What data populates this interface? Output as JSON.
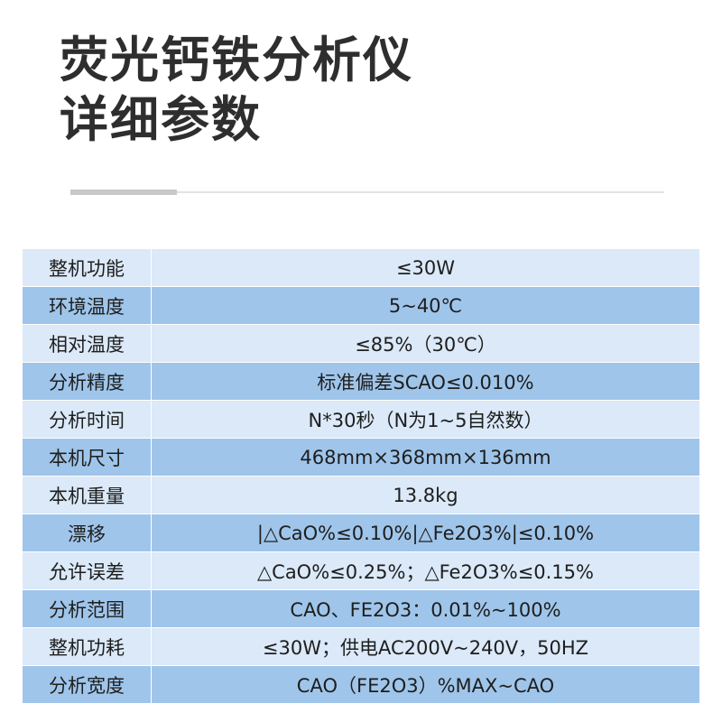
{
  "title": {
    "line1": "荧光钙铁分析仪",
    "line2": "详细参数"
  },
  "specs": [
    {
      "label": "整机功能",
      "value": "≤30W"
    },
    {
      "label": "环境温度",
      "value": "5~40℃"
    },
    {
      "label": "相对温度",
      "value": "≤85%（30℃）"
    },
    {
      "label": "分析精度",
      "value": "标准偏差SCAO≤0.010%"
    },
    {
      "label": "分析时间",
      "value": "N*30秒（N为1~5自然数）"
    },
    {
      "label": "本机尺寸",
      "value": "468mm×368mm×136mm"
    },
    {
      "label": "本机重量",
      "value": "13.8kg"
    },
    {
      "label": "漂移",
      "value": "|△CaO%≤0.10%|△Fe2O3%|≤0.10%"
    },
    {
      "label": "允许误差",
      "value": "△CaO%≤0.25%；△Fe2O3%≤0.15%"
    },
    {
      "label": "分析范围",
      "value": "CAO、FE2O3：0.01%~100%"
    },
    {
      "label": "整机功耗",
      "value": "≤30W；供电AC200V~240V，50HZ"
    },
    {
      "label": "分析宽度",
      "value": "CAO（FE2O3）%MAX~CAO"
    }
  ],
  "colors": {
    "row_light": "#dbe9f8",
    "row_dark": "#9fc5ea",
    "title_text": "#2e2e2e"
  }
}
